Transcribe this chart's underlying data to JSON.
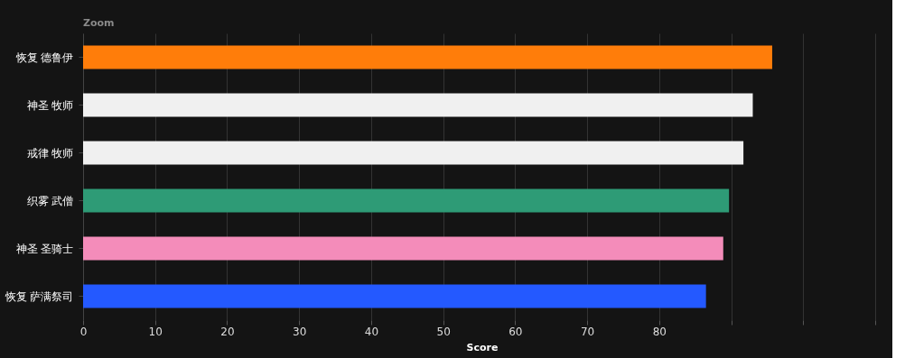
{
  "chart_data": {
    "type": "bar",
    "orientation": "horizontal",
    "xlabel": "Score",
    "annotations": [
      "Zoom"
    ],
    "categories": [
      "恢复 德鲁伊",
      "神圣 牧师",
      "戒律 牧师",
      "织雾 武僧",
      "神圣 圣骑士",
      "恢复 萨满祭司"
    ],
    "values": [
      95.7,
      93.0,
      91.7,
      89.7,
      88.9,
      86.5
    ],
    "colors": [
      "#ff7d0a",
      "#f0f0f0",
      "#f0f0f0",
      "#2e9b76",
      "#f48cba",
      "#2459ff"
    ],
    "xlim": [
      0,
      110
    ],
    "xticks": [
      0,
      10,
      20,
      30,
      40,
      50,
      60,
      70,
      80,
      {
        "value": 90,
        "label": null
      },
      {
        "value": 100,
        "label": null
      },
      {
        "value": 110,
        "label": null
      }
    ],
    "grid": "x"
  }
}
